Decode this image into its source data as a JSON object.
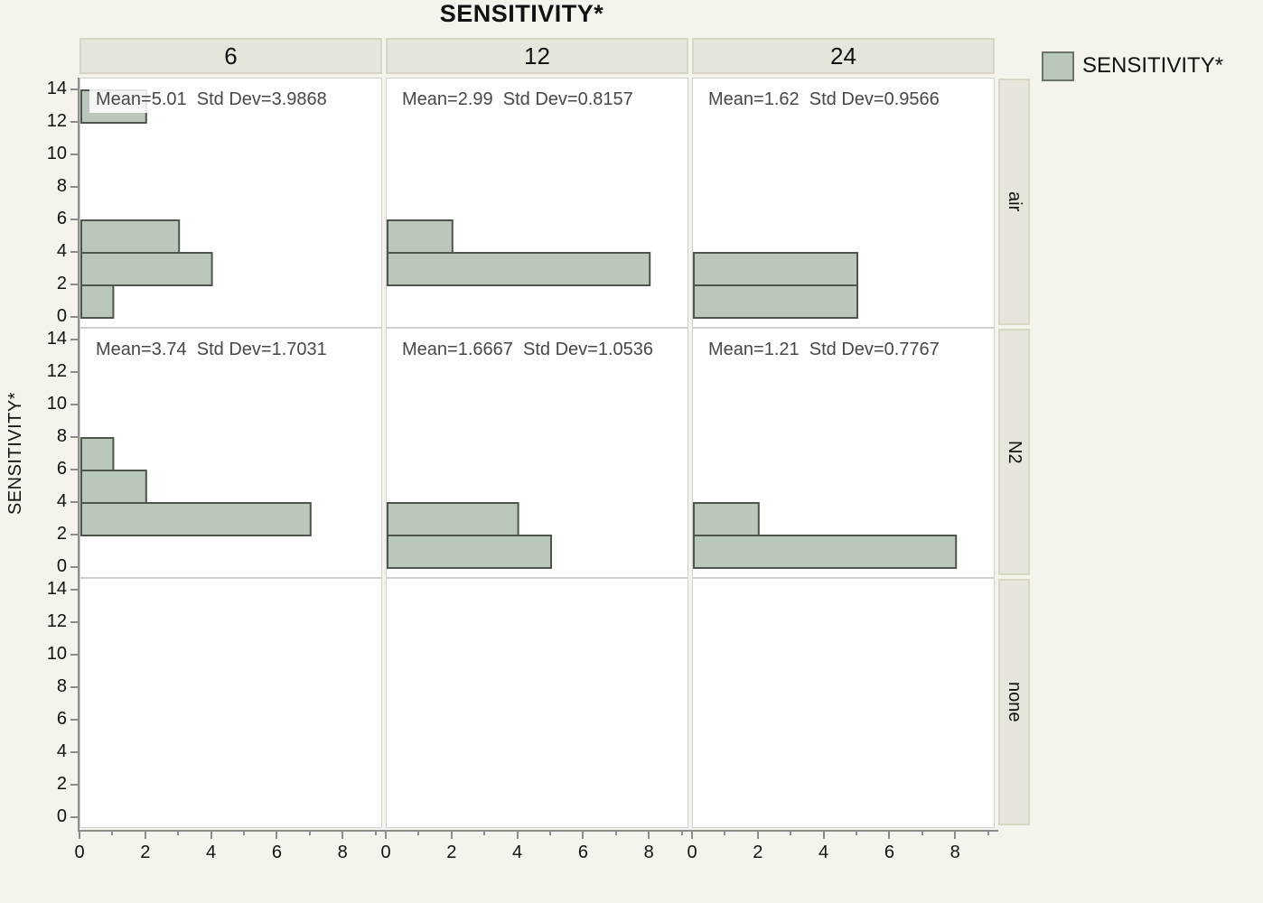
{
  "chart_data": {
    "type": "bar",
    "subtype": "trellis-horizontal-histogram",
    "title": "SENSITIVITY*",
    "ylabel": "SENSITIVITY*",
    "xlabel": "",
    "legend_label": "SENSITIVITY*",
    "legend_position": "top-right",
    "column_headers": [
      "6",
      "12",
      "24"
    ],
    "row_headers": [
      "air",
      "N2",
      "none"
    ],
    "x_ticks_major": [
      0,
      2,
      4,
      6,
      8
    ],
    "x_ticks_minor": [
      1,
      3,
      5,
      7,
      9
    ],
    "x_range": [
      0,
      9.2
    ],
    "y_ticks": [
      0,
      2,
      4,
      6,
      8,
      10,
      12,
      14
    ],
    "y_range": [
      -0.7,
      14.7
    ],
    "grid": false,
    "panels": [
      {
        "row": "air",
        "col": "6",
        "stats": "Mean=5.01  Std Dev=3.9868",
        "bins": [
          {
            "lo": 12,
            "hi": 14,
            "count": 2
          },
          {
            "lo": 4,
            "hi": 6,
            "count": 3
          },
          {
            "lo": 2,
            "hi": 4,
            "count": 4
          },
          {
            "lo": 0,
            "hi": 2,
            "count": 1
          }
        ]
      },
      {
        "row": "air",
        "col": "12",
        "stats": "Mean=2.99  Std Dev=0.8157",
        "bins": [
          {
            "lo": 4,
            "hi": 6,
            "count": 2
          },
          {
            "lo": 2,
            "hi": 4,
            "count": 8
          }
        ]
      },
      {
        "row": "air",
        "col": "24",
        "stats": "Mean=1.62  Std Dev=0.9566",
        "bins": [
          {
            "lo": 2,
            "hi": 4,
            "count": 5
          },
          {
            "lo": 0,
            "hi": 2,
            "count": 5
          }
        ]
      },
      {
        "row": "N2",
        "col": "6",
        "stats": "Mean=3.74  Std Dev=1.7031",
        "bins": [
          {
            "lo": 6,
            "hi": 8,
            "count": 1
          },
          {
            "lo": 4,
            "hi": 6,
            "count": 2
          },
          {
            "lo": 2,
            "hi": 4,
            "count": 7
          }
        ]
      },
      {
        "row": "N2",
        "col": "12",
        "stats": "Mean=1.6667  Std Dev=1.0536",
        "bins": [
          {
            "lo": 2,
            "hi": 4,
            "count": 4
          },
          {
            "lo": 0,
            "hi": 2,
            "count": 5
          }
        ]
      },
      {
        "row": "N2",
        "col": "24",
        "stats": "Mean=1.21  Std Dev=0.7767",
        "bins": [
          {
            "lo": 2,
            "hi": 4,
            "count": 2
          },
          {
            "lo": 0,
            "hi": 2,
            "count": 8
          }
        ]
      },
      {
        "row": "none",
        "col": "6",
        "stats": null,
        "bins": []
      },
      {
        "row": "none",
        "col": "12",
        "stats": null,
        "bins": []
      },
      {
        "row": "none",
        "col": "24",
        "stats": null,
        "bins": []
      }
    ]
  },
  "colors": {
    "background": "#f5f4ec",
    "panel_bg": "#ffffff",
    "panel_border": "#cfcfcf",
    "header_bg": "#e8e6dc",
    "header_border": "#d8d5c3",
    "bar_fill": "#b9c8ba",
    "bar_border": "#4e554b",
    "axis": "#8c8c8c",
    "stats_text": "#474747"
  }
}
